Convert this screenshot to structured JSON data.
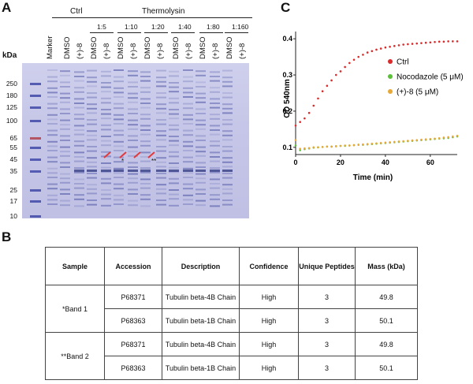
{
  "panel_a": {
    "label": "A",
    "ctrl_label": "Ctrl",
    "thermolysin_label": "Thermolysin",
    "kda_label": "kDa",
    "lanes": [
      "Marker",
      "DMSO",
      "(+)-8",
      "DMSO",
      "(+)-8",
      "DMSO",
      "(+)-8",
      "DMSO",
      "(+)-8",
      "DMSO",
      "(+)-8",
      "DMSO",
      "(+)-8",
      "DMSO",
      "(+)-8"
    ],
    "ratios": [
      "1:5",
      "1:10",
      "1:20",
      "1:40",
      "1:80",
      "1:160"
    ],
    "mw_markers": [
      "250",
      "180",
      "125",
      "100",
      "65",
      "55",
      "45",
      "35",
      "25",
      "17",
      "10"
    ],
    "band_marks": [
      "*",
      "**"
    ]
  },
  "panel_b": {
    "label": "B",
    "headers": [
      "Sample",
      "Accession",
      "Description",
      "Confidence",
      "Unique Peptides",
      "Mass (kDa)"
    ],
    "groups": [
      {
        "sample": "*Band 1",
        "rows": [
          {
            "accession": "P68371",
            "description": "Tubulin beta-4B Chain",
            "confidence": "High",
            "peptides": "3",
            "mass": "49.8"
          },
          {
            "accession": "P68363",
            "description": "Tubulin beta-1B Chain",
            "confidence": "High",
            "peptides": "3",
            "mass": "50.1"
          }
        ]
      },
      {
        "sample": "**Band 2",
        "rows": [
          {
            "accession": "P68371",
            "description": "Tubulin beta-4B Chain",
            "confidence": "High",
            "peptides": "3",
            "mass": "49.8"
          },
          {
            "accession": "P68363",
            "description": "Tubulin beta-1B Chain",
            "confidence": "High",
            "peptides": "3",
            "mass": "50.1"
          }
        ]
      }
    ]
  },
  "panel_c": {
    "label": "C",
    "chart_data": {
      "type": "scatter",
      "xlabel": "Time (min)",
      "ylabel": "OD 540nm",
      "xlim": [
        0,
        72
      ],
      "ylim": [
        0.08,
        0.42
      ],
      "xticks": [
        0,
        20,
        40,
        60
      ],
      "yticks": [
        0.1,
        0.2,
        0.3,
        0.4
      ],
      "series": [
        {
          "name": "Ctrl",
          "color": "#d92b2b",
          "x": [
            0,
            2,
            4,
            6,
            8,
            10,
            12,
            14,
            16,
            18,
            20,
            22,
            24,
            26,
            28,
            30,
            32,
            34,
            36,
            38,
            40,
            42,
            44,
            46,
            48,
            50,
            52,
            54,
            56,
            58,
            60,
            62,
            64,
            66,
            68,
            70,
            72
          ],
          "y": [
            0.16,
            0.17,
            0.18,
            0.195,
            0.215,
            0.235,
            0.255,
            0.27,
            0.285,
            0.3,
            0.31,
            0.322,
            0.333,
            0.342,
            0.35,
            0.356,
            0.362,
            0.366,
            0.37,
            0.373,
            0.376,
            0.378,
            0.38,
            0.382,
            0.384,
            0.385,
            0.386,
            0.387,
            0.388,
            0.389,
            0.39,
            0.391,
            0.392,
            0.392,
            0.393,
            0.393,
            0.393
          ]
        },
        {
          "name": "Nocodazole (5 μM)",
          "color": "#5cbf3a",
          "x": [
            0,
            2,
            4,
            6,
            8,
            10,
            12,
            14,
            16,
            18,
            20,
            22,
            24,
            26,
            28,
            30,
            32,
            34,
            36,
            38,
            40,
            42,
            44,
            46,
            48,
            50,
            52,
            54,
            56,
            58,
            60,
            62,
            64,
            66,
            68,
            70,
            72
          ],
          "y": [
            0.105,
            0.092,
            0.095,
            0.097,
            0.099,
            0.1,
            0.101,
            0.102,
            0.102,
            0.103,
            0.104,
            0.104,
            0.105,
            0.106,
            0.107,
            0.107,
            0.108,
            0.109,
            0.11,
            0.111,
            0.112,
            0.113,
            0.114,
            0.115,
            0.116,
            0.117,
            0.118,
            0.119,
            0.12,
            0.121,
            0.122,
            0.123,
            0.124,
            0.125,
            0.126,
            0.128,
            0.13
          ]
        },
        {
          "name": "(+)-8 (5 μM)",
          "color": "#e8a838",
          "x": [
            0,
            2,
            4,
            6,
            8,
            10,
            12,
            14,
            16,
            18,
            20,
            22,
            24,
            26,
            28,
            30,
            32,
            34,
            36,
            38,
            40,
            42,
            44,
            46,
            48,
            50,
            52,
            54,
            56,
            58,
            60,
            62,
            64,
            66,
            68,
            70,
            72
          ],
          "y": [
            0.12,
            0.096,
            0.097,
            0.098,
            0.1,
            0.1,
            0.101,
            0.102,
            0.102,
            0.103,
            0.104,
            0.105,
            0.105,
            0.106,
            0.107,
            0.108,
            0.109,
            0.11,
            0.111,
            0.112,
            0.113,
            0.114,
            0.115,
            0.116,
            0.117,
            0.118,
            0.119,
            0.12,
            0.121,
            0.122,
            0.123,
            0.124,
            0.125,
            0.127,
            0.128,
            0.13,
            0.132
          ]
        }
      ]
    }
  }
}
